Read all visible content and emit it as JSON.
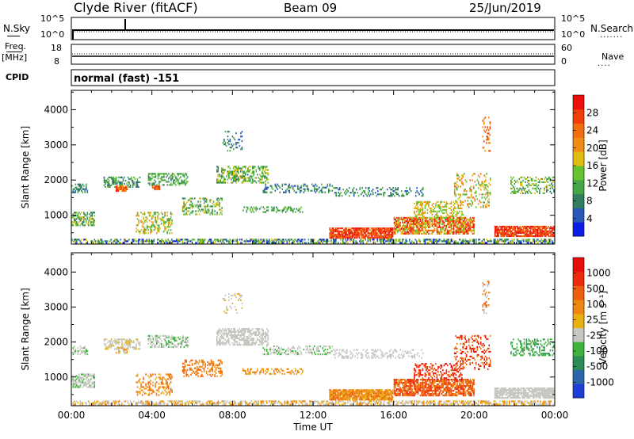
{
  "header": {
    "title": "Clyde River (fitACF)",
    "beam": "Beam 09",
    "date": "25/Jun/2019"
  },
  "top_panels": {
    "noise_left_label": "N.Sky",
    "noise_left_ticks": [
      "10^5",
      "10^0"
    ],
    "noise_right_label": "N.Search",
    "noise_right_ticks": [
      "10^5",
      "10^0"
    ],
    "freq_label": "Freq.",
    "freq_unit": "[MHz]",
    "freq_ticks": [
      "18",
      "8"
    ],
    "nave_label": "Nave",
    "nave_ticks": [
      "60",
      "0"
    ],
    "cpid_label": "CPID",
    "cpid_value": "normal (fast) -151"
  },
  "chart_data": [
    {
      "type": "heatmap",
      "name": "power-panel",
      "ylabel": "Slant Range [km]",
      "ylim": [
        180,
        4550
      ],
      "yticks": [
        1000,
        2000,
        3000,
        4000
      ],
      "xlim": [
        0,
        24
      ],
      "xticks": [
        "00:00",
        "04:00",
        "08:00",
        "12:00",
        "16:00",
        "20:00",
        "00:00"
      ],
      "colorbar": {
        "label": "Power [dB]",
        "ticks": [
          "4",
          "8",
          "12",
          "16",
          "20",
          "24",
          "28"
        ],
        "colors": [
          "#0a1ee6",
          "#2a58b8",
          "#317e5e",
          "#46a646",
          "#66c330",
          "#e3bc10",
          "#ef8c12",
          "#f06e0b",
          "#f23f0a",
          "#ee0d0d"
        ]
      }
    },
    {
      "type": "heatmap",
      "name": "velocity-panel",
      "ylabel": "Slant Range [km]",
      "ylim": [
        180,
        4550
      ],
      "yticks": [
        1000,
        2000,
        3000,
        4000
      ],
      "xlabel": "Time UT",
      "xlim": [
        0,
        24
      ],
      "xticks": [
        "00:00",
        "04:00",
        "08:00",
        "12:00",
        "16:00",
        "20:00",
        "00:00"
      ],
      "colorbar": {
        "label": "Velocity [m s⁻¹]",
        "ticks": [
          "1000",
          "500",
          "100",
          "25",
          "-25",
          "-100",
          "-500",
          "-1000"
        ],
        "colors": [
          "#1e3fd6",
          "#2b66a8",
          "#2f8b55",
          "#3fb43c",
          "#c6c6c0",
          "#e8b10f",
          "#ef8612",
          "#ef5e0c",
          "#ec2a0c",
          "#e80d0d"
        ]
      }
    }
  ]
}
